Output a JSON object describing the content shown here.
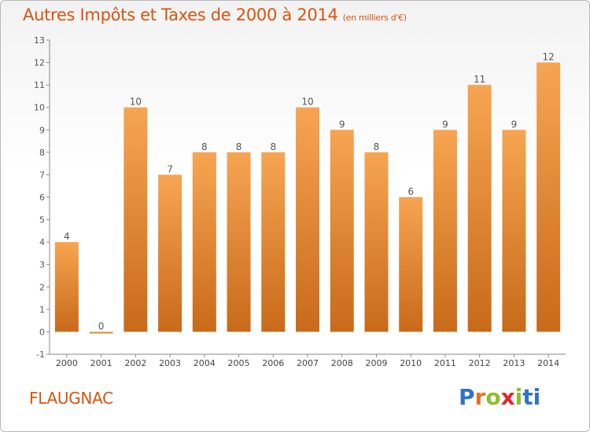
{
  "title": "Autres Impôts et Taxes de 2000 à 2014",
  "subtitle": "(en milliers d'€)",
  "commune": "FLAUGNAC",
  "logo_text": "Proxiti",
  "colors": {
    "accent": "#d9540f",
    "bar_top": "#f7a552",
    "bar_bottom": "#c86a1a",
    "axis": "#8a8a8a"
  },
  "chart_data": {
    "type": "bar",
    "title": "Autres Impôts et Taxes de 2000 à 2014",
    "subtitle": "(en milliers d'€)",
    "categories": [
      "2000",
      "2001",
      "2002",
      "2003",
      "2004",
      "2005",
      "2006",
      "2007",
      "2008",
      "2009",
      "2010",
      "2011",
      "2012",
      "2013",
      "2014"
    ],
    "values": [
      4,
      0,
      10,
      7,
      8,
      8,
      8,
      10,
      9,
      8,
      6,
      9,
      11,
      9,
      12
    ],
    "data_labels": [
      "4",
      "0",
      "10",
      "7",
      "8",
      "8",
      "8",
      "10",
      "9",
      "8",
      "6",
      "9",
      "11",
      "9",
      "12"
    ],
    "y_ticks": [
      -1,
      0,
      1,
      2,
      3,
      4,
      5,
      6,
      7,
      8,
      9,
      10,
      11,
      12,
      13
    ],
    "ylim": [
      -1,
      13
    ],
    "xlabel": "",
    "ylabel": "",
    "grid": false,
    "legend": "none"
  }
}
